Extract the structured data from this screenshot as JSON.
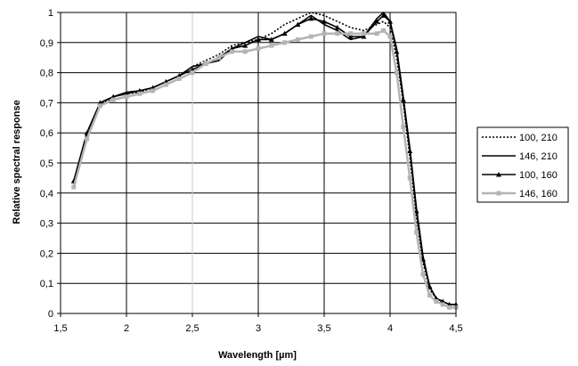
{
  "chart_data": {
    "type": "line",
    "title": "",
    "xlabel": "Wavelength [µm]",
    "ylabel": "Relative spectral response",
    "xlim": [
      1.5,
      4.5
    ],
    "ylim": [
      0,
      1
    ],
    "xticks": [
      "1,5",
      "2",
      "2,5",
      "3",
      "3,5",
      "4",
      "4,5"
    ],
    "xtick_values": [
      1.5,
      2,
      2.5,
      3,
      3.5,
      4,
      4.5
    ],
    "yticks": [
      "0",
      "0,1",
      "0,2",
      "0,3",
      "0,4",
      "0,5",
      "0,6",
      "0,7",
      "0,8",
      "0,9",
      "1"
    ],
    "ytick_values": [
      0,
      0.1,
      0.2,
      0.3,
      0.4,
      0.5,
      0.6,
      0.7,
      0.8,
      0.9,
      1.0
    ],
    "grid": true,
    "legend_position": "right",
    "series": [
      {
        "name": "100, 210",
        "style": "dotted",
        "color": "#000000",
        "x": [
          1.6,
          1.7,
          1.8,
          1.9,
          2.0,
          2.1,
          2.2,
          2.3,
          2.4,
          2.5,
          2.6,
          2.7,
          2.8,
          2.9,
          3.0,
          3.1,
          3.2,
          3.3,
          3.4,
          3.5,
          3.6,
          3.7,
          3.8,
          3.9,
          3.95,
          4.0,
          4.05,
          4.1,
          4.15,
          4.2,
          4.25,
          4.3,
          4.35,
          4.4,
          4.45,
          4.5
        ],
        "y": [
          0.43,
          0.59,
          0.69,
          0.72,
          0.73,
          0.735,
          0.75,
          0.77,
          0.79,
          0.82,
          0.84,
          0.86,
          0.89,
          0.9,
          0.91,
          0.93,
          0.96,
          0.98,
          1.0,
          0.99,
          0.97,
          0.95,
          0.94,
          0.96,
          0.97,
          0.95,
          0.85,
          0.7,
          0.52,
          0.32,
          0.17,
          0.08,
          0.05,
          0.03,
          0.02,
          0.02
        ]
      },
      {
        "name": "146, 210",
        "style": "solid",
        "color": "#000000",
        "x": [
          1.6,
          1.7,
          1.8,
          1.9,
          2.0,
          2.1,
          2.2,
          2.3,
          2.4,
          2.5,
          2.6,
          2.7,
          2.8,
          2.9,
          3.0,
          3.1,
          3.2,
          3.3,
          3.4,
          3.5,
          3.6,
          3.7,
          3.8,
          3.9,
          3.95,
          4.0,
          4.05,
          4.1,
          4.15,
          4.2,
          4.25,
          4.3,
          4.35,
          4.4,
          4.45,
          4.5
        ],
        "y": [
          0.44,
          0.6,
          0.7,
          0.72,
          0.735,
          0.74,
          0.75,
          0.77,
          0.79,
          0.82,
          0.83,
          0.84,
          0.88,
          0.9,
          0.92,
          0.91,
          0.93,
          0.96,
          0.99,
          0.96,
          0.94,
          0.91,
          0.92,
          0.98,
          1.0,
          0.97,
          0.88,
          0.72,
          0.55,
          0.35,
          0.19,
          0.09,
          0.05,
          0.04,
          0.03,
          0.03
        ]
      },
      {
        "name": "100, 160",
        "style": "triangle-markers",
        "color": "#000000",
        "x": [
          1.6,
          1.7,
          1.8,
          1.9,
          2.0,
          2.1,
          2.2,
          2.3,
          2.4,
          2.5,
          2.6,
          2.7,
          2.8,
          2.9,
          3.0,
          3.1,
          3.2,
          3.3,
          3.4,
          3.5,
          3.6,
          3.7,
          3.8,
          3.9,
          3.95,
          4.0,
          4.05,
          4.1,
          4.15,
          4.2,
          4.25,
          4.3,
          4.35,
          4.4,
          4.45,
          4.5
        ],
        "y": [
          0.44,
          0.6,
          0.7,
          0.72,
          0.73,
          0.74,
          0.75,
          0.77,
          0.79,
          0.81,
          0.83,
          0.85,
          0.88,
          0.89,
          0.91,
          0.91,
          0.93,
          0.96,
          0.98,
          0.97,
          0.95,
          0.92,
          0.92,
          0.97,
          0.99,
          0.97,
          0.87,
          0.71,
          0.54,
          0.34,
          0.18,
          0.09,
          0.05,
          0.04,
          0.03,
          0.03
        ]
      },
      {
        "name": "146, 160",
        "style": "square-markers",
        "color": "#b4b4b4",
        "x": [
          1.6,
          1.7,
          1.8,
          1.9,
          2.0,
          2.1,
          2.2,
          2.3,
          2.4,
          2.5,
          2.6,
          2.7,
          2.8,
          2.9,
          3.0,
          3.1,
          3.2,
          3.3,
          3.4,
          3.5,
          3.6,
          3.7,
          3.8,
          3.9,
          3.95,
          4.0,
          4.05,
          4.1,
          4.15,
          4.2,
          4.25,
          4.3,
          4.35,
          4.4,
          4.45,
          4.5
        ],
        "y": [
          0.42,
          0.58,
          0.69,
          0.71,
          0.72,
          0.73,
          0.74,
          0.76,
          0.78,
          0.8,
          0.83,
          0.85,
          0.87,
          0.87,
          0.88,
          0.89,
          0.9,
          0.91,
          0.92,
          0.93,
          0.93,
          0.93,
          0.93,
          0.93,
          0.94,
          0.92,
          0.8,
          0.62,
          0.45,
          0.27,
          0.13,
          0.06,
          0.04,
          0.03,
          0.02,
          0.02
        ]
      }
    ]
  }
}
